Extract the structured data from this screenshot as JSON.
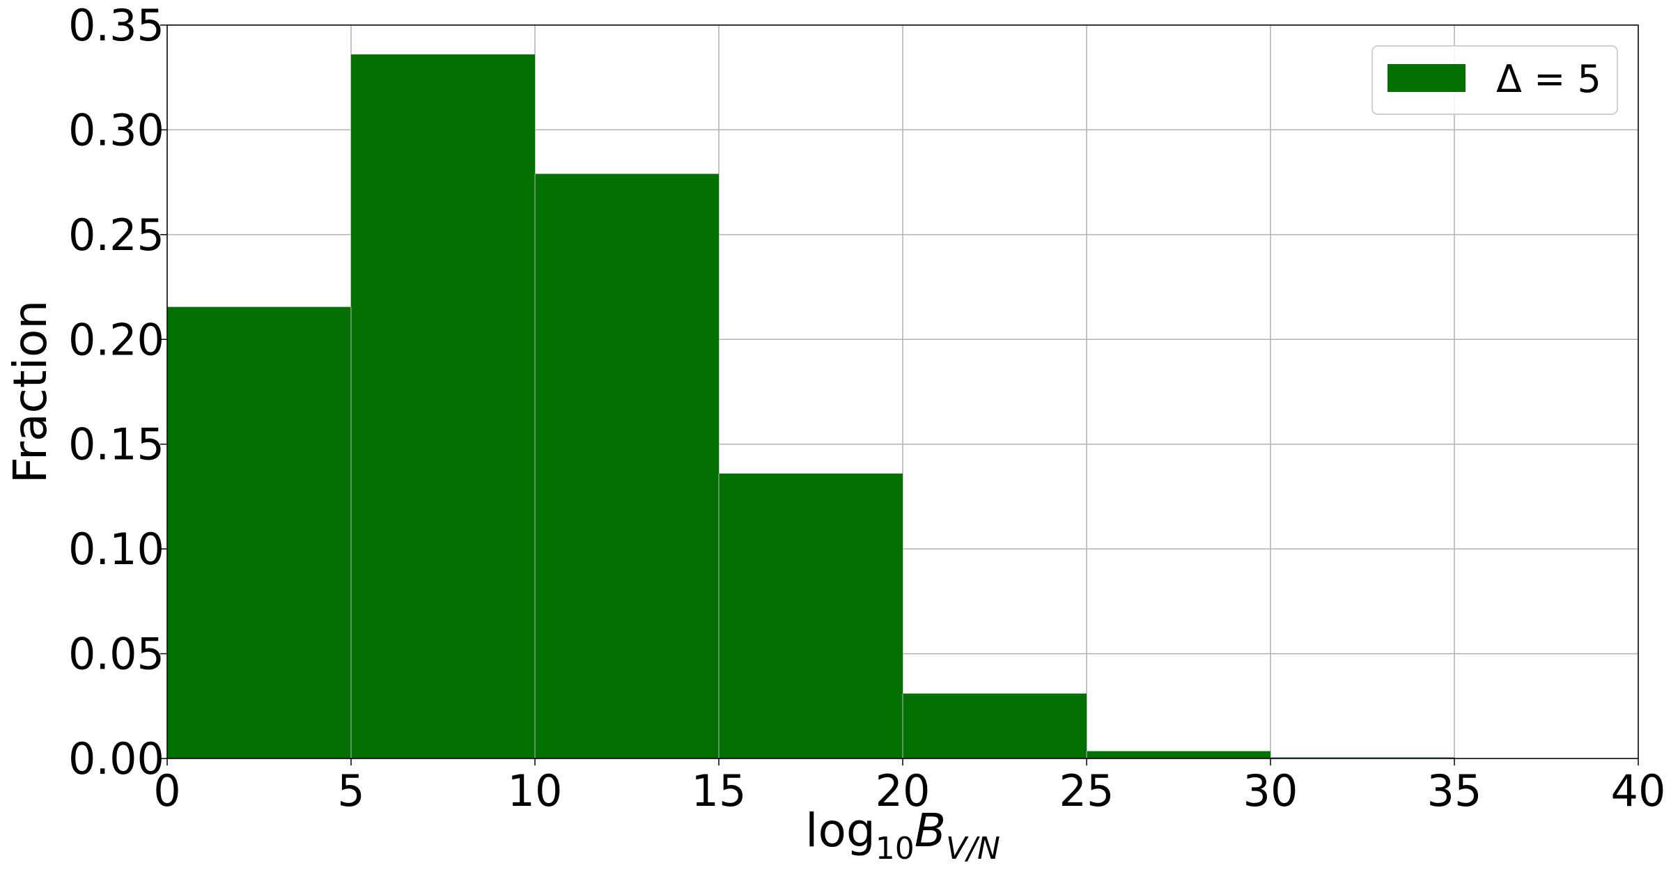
{
  "chart_data": {
    "type": "bar",
    "title": "",
    "xlabel": {
      "base": "log",
      "sub": "10",
      "var": "B",
      "var_sub": "V/N"
    },
    "ylabel": "Fraction",
    "bin_edges": [
      0,
      5,
      10,
      15,
      20,
      25,
      30,
      35,
      40
    ],
    "series": [
      {
        "name": "Δ = 5",
        "values": [
          0.2155,
          0.336,
          0.279,
          0.136,
          0.031,
          0.0035,
          0.0005,
          0.0
        ],
        "color": "#037003"
      }
    ],
    "xlim": [
      0,
      40
    ],
    "ylim": [
      0,
      0.35
    ],
    "x_ticks": [
      "0",
      "5",
      "10",
      "15",
      "20",
      "25",
      "30",
      "35",
      "40"
    ],
    "y_ticks": [
      "0.00",
      "0.05",
      "0.10",
      "0.15",
      "0.20",
      "0.25",
      "0.30",
      "0.35"
    ],
    "grid": true,
    "legend_position": "top-right",
    "grid_color": "#b0b0b0"
  }
}
